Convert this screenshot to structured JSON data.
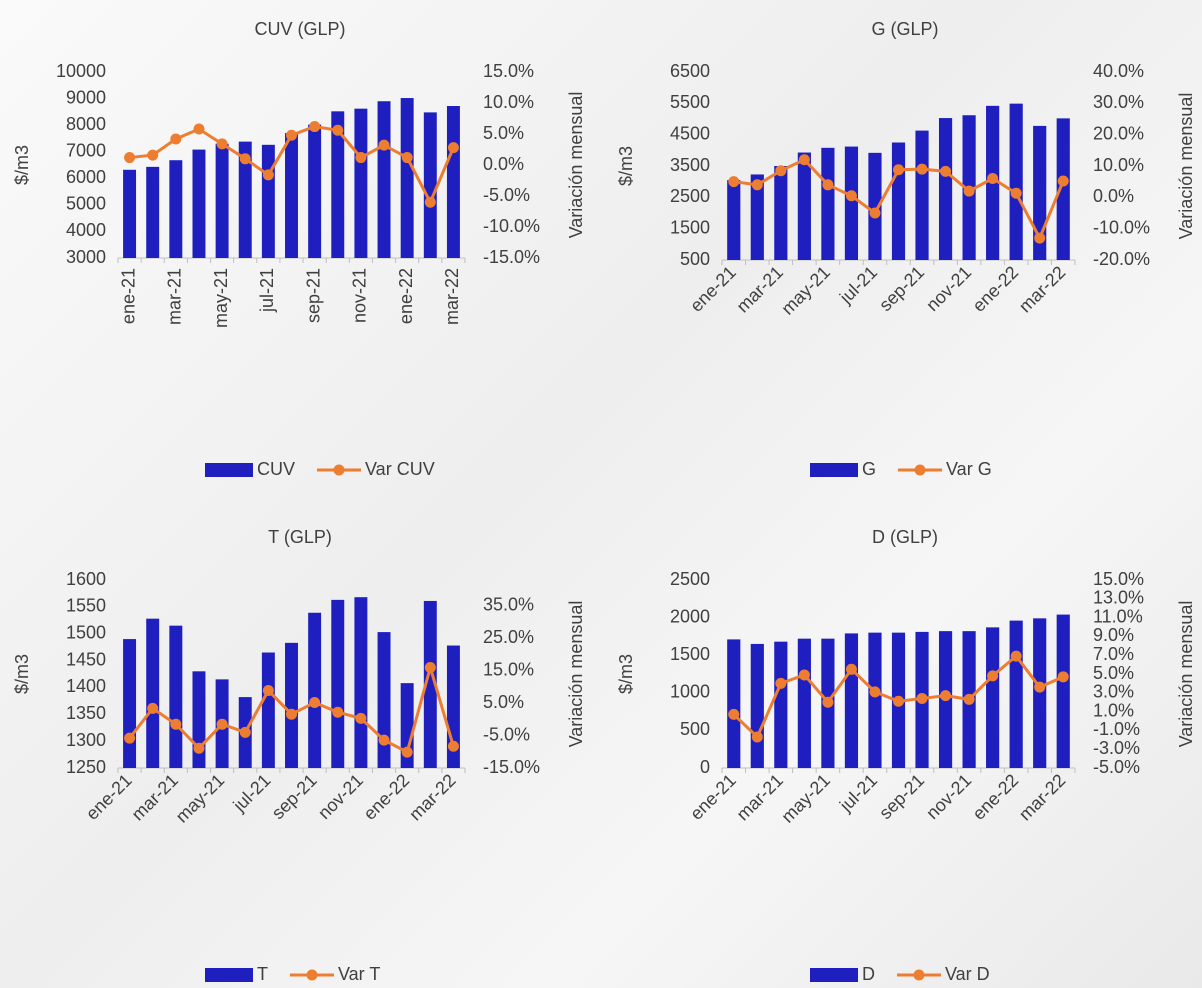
{
  "chart_data": [
    {
      "type": "combo",
      "title": "CUV (GLP)",
      "ylabel": "$/m3",
      "y2label": "Variación mensual",
      "categories": [
        "ene-21",
        null,
        "mar-21",
        null,
        "may-21",
        null,
        "jul-21",
        null,
        "sep-21",
        null,
        "nov-21",
        null,
        "ene-22",
        null,
        "mar-22"
      ],
      "ylim": [
        3000,
        10000
      ],
      "yticks": [
        3000,
        4000,
        5000,
        6000,
        7000,
        8000,
        9000,
        10000
      ],
      "y2lim": [
        -15,
        15
      ],
      "y2ticks": [
        {
          "value": -15,
          "label": "-15.0%"
        },
        {
          "value": -10,
          "label": "-10.0%"
        },
        {
          "value": -5,
          "label": "-5.0%"
        },
        {
          "value": 0,
          "label": "0.0%"
        },
        {
          "value": 5,
          "label": "5.0%"
        },
        {
          "value": 10,
          "label": "10.0%"
        },
        {
          "value": 15,
          "label": "15.0%"
        }
      ],
      "series": [
        {
          "name": "CUV",
          "type": "bar",
          "color": "#1f1fbf",
          "values": [
            6320,
            6430,
            6680,
            7080,
            7300,
            7380,
            7260,
            7700,
            8020,
            8520,
            8620,
            8900,
            9020,
            8480,
            8720
          ]
        },
        {
          "name": "Var CUV",
          "type": "line",
          "axis": "y2",
          "color": "#ed7d31",
          "values": [
            1.2,
            1.6,
            4.2,
            5.8,
            3.4,
            1.0,
            -1.6,
            4.8,
            6.2,
            5.6,
            1.2,
            3.2,
            1.2,
            -6.0,
            2.8
          ]
        }
      ]
    },
    {
      "type": "combo",
      "title": "G (GLP)",
      "ylabel": "$/m3",
      "y2label": "Variación mensual",
      "categories": [
        "ene-21",
        null,
        "mar-21",
        null,
        "may-21",
        null,
        "jul-21",
        null,
        "sep-21",
        null,
        "nov-21",
        null,
        "ene-22",
        null,
        "mar-22"
      ],
      "ylim": [
        500,
        6500
      ],
      "yticks": [
        500,
        1500,
        2500,
        3500,
        4500,
        5500,
        6500
      ],
      "y2lim": [
        -20,
        40
      ],
      "y2ticks": [
        {
          "value": -20,
          "label": "-20.0%"
        },
        {
          "value": -10,
          "label": "-10.0%"
        },
        {
          "value": 0,
          "label": "0.0%"
        },
        {
          "value": 10,
          "label": "10.0%"
        },
        {
          "value": 20,
          "label": "20.0%"
        },
        {
          "value": 30,
          "label": "30.0%"
        },
        {
          "value": 40,
          "label": "40.0%"
        }
      ],
      "series": [
        {
          "name": "G",
          "type": "bar",
          "color": "#1f1fbf",
          "values": [
            3050,
            3230,
            3500,
            3930,
            4080,
            4120,
            3920,
            4250,
            4630,
            5030,
            5120,
            5420,
            5490,
            4780,
            5020
          ]
        },
        {
          "name": "Var G",
          "type": "line",
          "axis": "y2",
          "color": "#ed7d31",
          "values": [
            5.0,
            4.0,
            8.5,
            12.0,
            4.0,
            0.5,
            -5.0,
            8.8,
            9.0,
            8.3,
            2.0,
            6.0,
            1.3,
            -13.0,
            5.2
          ]
        }
      ]
    },
    {
      "type": "combo",
      "title": "T (GLP)",
      "ylabel": "$/m3",
      "y2label": "Variación mensual",
      "categories": [
        "ene-21",
        null,
        "mar-21",
        null,
        "may-21",
        null,
        "jul-21",
        null,
        "sep-21",
        null,
        "nov-21",
        null,
        "ene-22",
        null,
        "mar-22"
      ],
      "ylim": [
        1250,
        1600
      ],
      "yticks": [
        1250,
        1300,
        1350,
        1400,
        1450,
        1500,
        1550,
        1600
      ],
      "y2lim": [
        -15,
        43
      ],
      "y2ticks": [
        {
          "value": -15,
          "label": "-15.0%"
        },
        {
          "value": -5,
          "label": "-5.0%"
        },
        {
          "value": 5,
          "label": "5.0%"
        },
        {
          "value": 15,
          "label": "15.0%"
        },
        {
          "value": 25,
          "label": "25.0%"
        },
        {
          "value": 35,
          "label": "35.0%"
        }
      ],
      "series": [
        {
          "name": "T",
          "type": "bar",
          "color": "#1f1fbf",
          "values": [
            1490,
            1528,
            1515,
            1430,
            1415,
            1382,
            1465,
            1483,
            1539,
            1563,
            1568,
            1503,
            1408,
            1561,
            1478
          ]
        },
        {
          "name": "Var T",
          "type": "line",
          "axis": "y2",
          "color": "#ed7d31",
          "values": [
            -5.8,
            3.4,
            -1.5,
            -8.9,
            -1.5,
            -4.0,
            8.9,
            1.6,
            5.2,
            2.2,
            0.3,
            -6.4,
            -10.1,
            16.0,
            -8.3
          ]
        }
      ]
    },
    {
      "type": "combo",
      "title": "D (GLP)",
      "ylabel": "$/m3",
      "y2label": "Variación mensual",
      "categories": [
        "ene-21",
        null,
        "mar-21",
        null,
        "may-21",
        null,
        "jul-21",
        null,
        "sep-21",
        null,
        "nov-21",
        null,
        "ene-22",
        null,
        "mar-22"
      ],
      "ylim": [
        0,
        2500
      ],
      "yticks": [
        0,
        500,
        1000,
        1500,
        2000,
        2500
      ],
      "y2lim": [
        -5,
        15
      ],
      "y2ticks": [
        {
          "value": -5,
          "label": "-5.0%"
        },
        {
          "value": -3,
          "label": "-3.0%"
        },
        {
          "value": -1,
          "label": "-1.0%"
        },
        {
          "value": 1,
          "label": "1.0%"
        },
        {
          "value": 3,
          "label": "3.0%"
        },
        {
          "value": 5,
          "label": "5.0%"
        },
        {
          "value": 7,
          "label": "7.0%"
        },
        {
          "value": 9,
          "label": "9.0%"
        },
        {
          "value": 11,
          "label": "11.0%"
        },
        {
          "value": 13,
          "label": "13.0%"
        },
        {
          "value": 15,
          "label": "15.0%"
        }
      ],
      "series": [
        {
          "name": "D",
          "type": "bar",
          "color": "#1f1fbf",
          "values": [
            1710,
            1650,
            1680,
            1720,
            1720,
            1790,
            1800,
            1800,
            1810,
            1820,
            1820,
            1870,
            1960,
            1990,
            2040
          ]
        },
        {
          "name": "Var D",
          "type": "line",
          "axis": "y2",
          "color": "#ed7d31",
          "values": [
            0.7,
            -1.7,
            4.0,
            4.9,
            2.0,
            5.5,
            3.1,
            2.1,
            2.4,
            2.7,
            2.3,
            4.8,
            6.9,
            3.6,
            4.7
          ]
        }
      ]
    }
  ]
}
